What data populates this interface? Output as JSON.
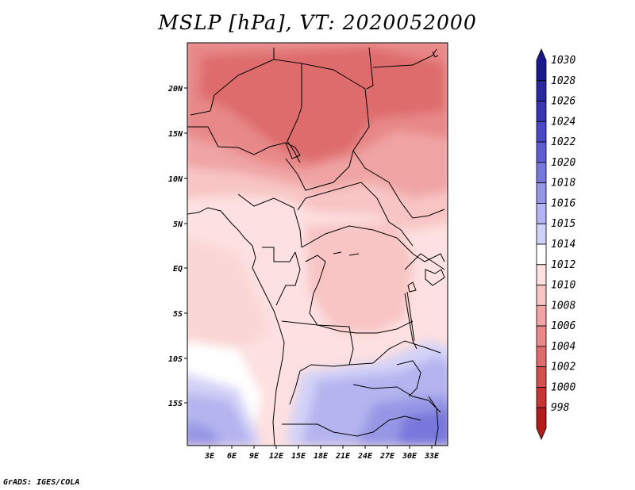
{
  "title": "MSLP [hPa], VT: 2020052000",
  "credit": "GrADS: IGES/COLA",
  "map": {
    "lon_labels": [
      "3E",
      "6E",
      "9E",
      "12E",
      "15E",
      "18E",
      "21E",
      "24E",
      "27E",
      "30E",
      "33E"
    ],
    "lat_labels": [
      "20N",
      "15N",
      "10N",
      "5N",
      "EQ",
      "5S",
      "10S",
      "15S"
    ]
  },
  "colorbar": {
    "levels": [
      "1030",
      "1028",
      "1026",
      "1024",
      "1022",
      "1020",
      "1018",
      "1016",
      "1015",
      "1014",
      "1012",
      "1010",
      "1008",
      "1006",
      "1004",
      "1002",
      "1000",
      "998"
    ],
    "colors": [
      "#1a1a8c",
      "#2828a0",
      "#3636b4",
      "#4848c4",
      "#5e5ed2",
      "#7878dc",
      "#9696e6",
      "#b4b4f0",
      "#d2d2f8",
      "#ffffff",
      "#fde0e0",
      "#f8c4c4",
      "#f0a4a4",
      "#e88888",
      "#de6c6c",
      "#d45050",
      "#c83434",
      "#b41c1c"
    ]
  }
}
